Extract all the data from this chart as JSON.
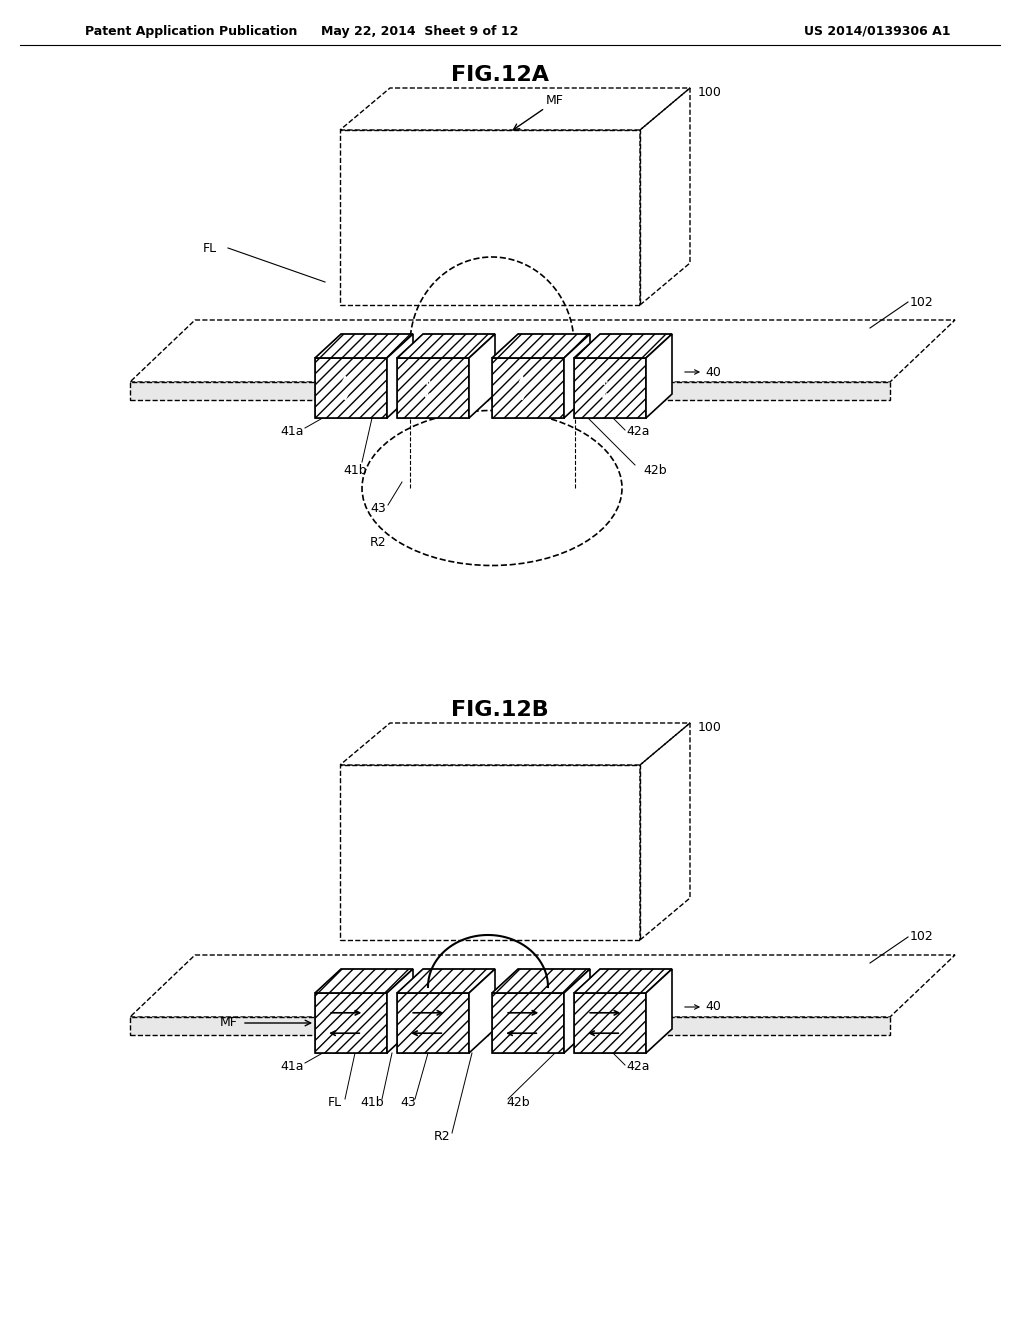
{
  "header_left": "Patent Application Publication",
  "header_mid": "May 22, 2014  Sheet 9 of 12",
  "header_right": "US 2014/0139306 A1",
  "fig_a_title": "FIG.12A",
  "fig_b_title": "FIG.12B",
  "bg_color": "#ffffff",
  "line_color": "#000000",
  "labels": {
    "MF_a": "MF",
    "FL_a": "FL",
    "ref_100_a": "100",
    "ref_102_a": "102",
    "ref_40_a": "40",
    "ref_41a": "41a",
    "ref_41b": "41b",
    "ref_42a": "42a",
    "ref_42b": "42b",
    "ref_43": "43",
    "ref_R2_a": "R2",
    "ref_100_b": "100",
    "ref_102_b": "102",
    "ref_40_b": "40",
    "MF_b": "MF",
    "ref_41a_b": "41a",
    "ref_41b_b": "41b",
    "ref_42a_b": "42a",
    "ref_42b_b": "42b",
    "ref_43_b": "43",
    "ref_R2_b": "R2",
    "ref_FL_b": "FL"
  }
}
